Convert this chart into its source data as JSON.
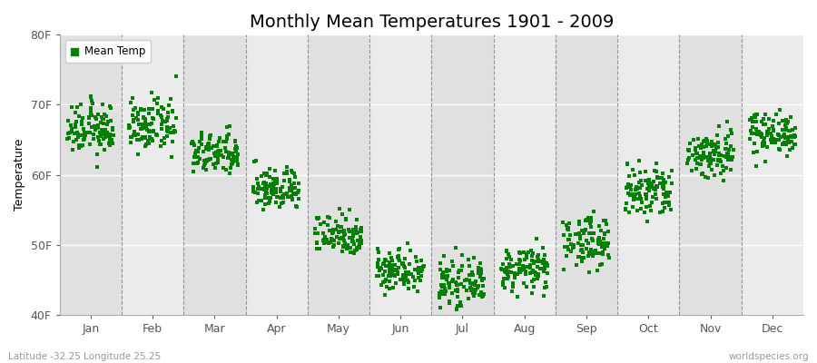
{
  "title": "Monthly Mean Temperatures 1901 - 2009",
  "ylabel": "Temperature",
  "xlabel_labels": [
    "Jan",
    "Feb",
    "Mar",
    "Apr",
    "May",
    "Jun",
    "Jul",
    "Aug",
    "Sep",
    "Oct",
    "Nov",
    "Dec"
  ],
  "ytick_labels": [
    "40F",
    "50F",
    "60F",
    "70F",
    "80F"
  ],
  "ytick_values": [
    40,
    50,
    60,
    70,
    80
  ],
  "ylim": [
    40,
    80
  ],
  "legend_label": "Mean Temp",
  "marker_color": "#008000",
  "marker": "s",
  "marker_size": 2.5,
  "background_color": "#f0f0f0",
  "footer_left": "Latitude -32.25 Longitude 25.25",
  "footer_right": "worldspecies.org",
  "title_fontsize": 14,
  "label_fontsize": 9,
  "num_years": 109,
  "monthly_means": [
    66.5,
    67.0,
    63.0,
    58.0,
    51.5,
    46.5,
    44.5,
    46.5,
    50.5,
    57.5,
    63.0,
    66.0
  ],
  "monthly_stds": [
    1.8,
    1.8,
    1.5,
    1.5,
    1.5,
    1.5,
    1.5,
    1.5,
    1.8,
    2.0,
    1.8,
    1.5
  ]
}
